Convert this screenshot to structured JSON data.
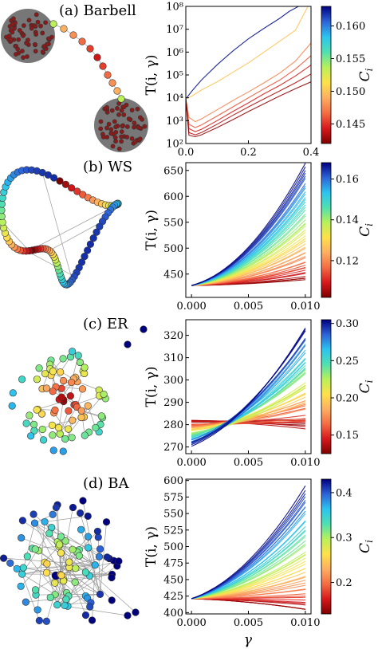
{
  "figure": {
    "colormap": [
      "#7f0000",
      "#d7191c",
      "#f46d43",
      "#fdae61",
      "#ffe14a",
      "#b8f15a",
      "#4fe0b0",
      "#2bc4f0",
      "#2e63d8",
      "#00007f"
    ],
    "y_axis_label": "T(i, γ)",
    "x_axis_label": "γ",
    "colorbar_label": "C_i"
  },
  "chart_data": [
    {
      "type": "line",
      "panel_label": "(a) Barbell",
      "network": "barbell",
      "xlabel": "",
      "ylabel": "T(i, γ)",
      "xlim": [
        0.0,
        0.4
      ],
      "ylim": [
        100,
        100000000
      ],
      "yscale": "log",
      "x_ticks": [
        "0.0",
        "0.2",
        "0.4"
      ],
      "y_ticks": [
        {
          "value": 100,
          "label": "10²"
        },
        {
          "value": 1000,
          "label": "10³"
        },
        {
          "value": 10000,
          "label": "10⁴"
        },
        {
          "value": 100000,
          "label": "10⁵"
        },
        {
          "value": 1000000,
          "label": "10⁶"
        },
        {
          "value": 10000000,
          "label": "10⁷"
        },
        {
          "value": 100000000,
          "label": "10⁸"
        }
      ],
      "colorbar": {
        "min": 0.142,
        "max": 0.163,
        "ticks": [
          "0.145",
          "0.150",
          "0.155",
          "0.160"
        ],
        "tick_values": [
          0.145,
          0.15,
          0.155,
          0.16
        ],
        "label": "C_i"
      },
      "grid": false,
      "series": [
        {
          "color_value": 0.1425,
          "values": [
            [
              0,
              9000
            ],
            [
              0.02,
              20000
            ],
            [
              0.05,
              60000
            ],
            [
              0.1,
              280000
            ],
            [
              0.15,
              1100000
            ],
            [
              0.2,
              3800000
            ],
            [
              0.25,
              11000000
            ],
            [
              0.3,
              30000000
            ],
            [
              0.33,
              60000000
            ],
            [
              0.36,
              100000000
            ]
          ]
        },
        {
          "color_value": 0.155,
          "values": [
            [
              0,
              9000
            ],
            [
              0.02,
              12000
            ],
            [
              0.05,
              22000
            ],
            [
              0.1,
              50000
            ],
            [
              0.15,
              130000
            ],
            [
              0.2,
              340000
            ],
            [
              0.25,
              1000000
            ],
            [
              0.3,
              3000000
            ],
            [
              0.35,
              9000000
            ],
            [
              0.39,
              100000000
            ]
          ]
        },
        {
          "color_value": 0.1575,
          "values": [
            [
              0,
              9000
            ],
            [
              0.01,
              1400
            ],
            [
              0.03,
              900
            ],
            [
              0.05,
              1200
            ],
            [
              0.1,
              3000
            ],
            [
              0.15,
              7500
            ],
            [
              0.2,
              18000
            ],
            [
              0.25,
              45000
            ],
            [
              0.3,
              120000
            ],
            [
              0.35,
              400000
            ],
            [
              0.4,
              2500000
            ]
          ]
        },
        {
          "color_value": 0.159,
          "values": [
            [
              0,
              9000
            ],
            [
              0.01,
              700
            ],
            [
              0.03,
              500
            ],
            [
              0.05,
              650
            ],
            [
              0.1,
              1600
            ],
            [
              0.15,
              4000
            ],
            [
              0.2,
              10000
            ],
            [
              0.25,
              25000
            ],
            [
              0.3,
              60000
            ],
            [
              0.35,
              180000
            ],
            [
              0.4,
              700000
            ]
          ]
        },
        {
          "color_value": 0.1605,
          "values": [
            [
              0,
              9000
            ],
            [
              0.01,
              450
            ],
            [
              0.03,
              330
            ],
            [
              0.05,
              420
            ],
            [
              0.1,
              1000
            ],
            [
              0.15,
              2500
            ],
            [
              0.2,
              6000
            ],
            [
              0.25,
              15000
            ],
            [
              0.3,
              35000
            ],
            [
              0.35,
              90000
            ],
            [
              0.4,
              270000
            ]
          ]
        },
        {
          "color_value": 0.1615,
          "values": [
            [
              0,
              9000
            ],
            [
              0.01,
              300
            ],
            [
              0.03,
              240
            ],
            [
              0.05,
              300
            ],
            [
              0.1,
              700
            ],
            [
              0.15,
              1700
            ],
            [
              0.2,
              4000
            ],
            [
              0.25,
              9000
            ],
            [
              0.3,
              20000
            ],
            [
              0.35,
              45000
            ],
            [
              0.4,
              110000
            ]
          ]
        },
        {
          "color_value": 0.1625,
          "values": [
            [
              0,
              9000
            ],
            [
              0.01,
              230
            ],
            [
              0.03,
              200
            ],
            [
              0.05,
              240
            ],
            [
              0.1,
              500
            ],
            [
              0.15,
              1100
            ],
            [
              0.2,
              2500
            ],
            [
              0.25,
              5500
            ],
            [
              0.3,
              12000
            ],
            [
              0.35,
              25000
            ],
            [
              0.4,
              50000
            ]
          ]
        }
      ]
    },
    {
      "type": "line",
      "panel_label": "(b) WS",
      "network": "watts-strogatz",
      "xlabel": "",
      "ylabel": "T(i, γ)",
      "xlim": [
        -0.0005,
        0.0105
      ],
      "ylim": [
        405,
        665
      ],
      "yscale": "linear",
      "x_ticks": [
        "0.000",
        "0.005",
        "0.010"
      ],
      "x_tick_values": [
        0,
        0.005,
        0.01
      ],
      "y_ticks": [
        450,
        500,
        550,
        600,
        650
      ],
      "colorbar": {
        "min": 0.102,
        "max": 0.168,
        "ticks": [
          "0.12",
          "0.14",
          "0.16"
        ],
        "tick_values": [
          0.12,
          0.14,
          0.16
        ],
        "label": "C_i"
      },
      "grid": false,
      "family": {
        "x0": 0,
        "x1": 0.01,
        "y0": 428,
        "cmin": 0.102,
        "cmax": 0.168,
        "n": 48,
        "end_min": 440,
        "end_max": 662,
        "curvature": 0.75
      }
    },
    {
      "type": "line",
      "panel_label": "(c) ER",
      "network": "erdos-renyi",
      "xlabel": "",
      "ylabel": "T(i, γ)",
      "xlim": [
        -0.0005,
        0.0105
      ],
      "ylim": [
        267,
        327
      ],
      "yscale": "linear",
      "x_ticks": [
        "0.000",
        "0.005",
        "0.010"
      ],
      "x_tick_values": [
        0,
        0.005,
        0.01
      ],
      "y_ticks": [
        270,
        280,
        290,
        300,
        310,
        320
      ],
      "colorbar": {
        "min": 0.125,
        "max": 0.305,
        "ticks": [
          "0.15",
          "0.20",
          "0.25",
          "0.30"
        ],
        "tick_values": [
          0.15,
          0.2,
          0.25,
          0.3
        ],
        "label": "C_i"
      },
      "grid": false,
      "family": {
        "x0": 0,
        "x1": 0.01,
        "y0_min": 271,
        "y0_max": 282,
        "cmin": 0.125,
        "cmax": 0.305,
        "n": 52,
        "end_min": 279,
        "end_max": 324,
        "curvature": 0.6
      }
    },
    {
      "type": "line",
      "panel_label": "(d) BA",
      "network": "barabasi-albert",
      "xlabel": "γ",
      "ylabel": "T(i, γ)",
      "xlim": [
        -0.0005,
        0.0105
      ],
      "ylim": [
        398,
        602
      ],
      "yscale": "linear",
      "x_ticks": [
        "0.000",
        "0.005",
        "0.010"
      ],
      "x_tick_values": [
        0,
        0.005,
        0.01
      ],
      "y_ticks": [
        400,
        425,
        450,
        475,
        500,
        525,
        550,
        575,
        600
      ],
      "colorbar": {
        "min": 0.13,
        "max": 0.43,
        "ticks": [
          "0.2",
          "0.3",
          "0.4"
        ],
        "tick_values": [
          0.2,
          0.3,
          0.4
        ],
        "label": "C_i"
      },
      "grid": false,
      "family": {
        "x0": 0,
        "x1": 0.01,
        "y0": 421,
        "cmin": 0.13,
        "cmax": 0.43,
        "n": 46,
        "end_min": 404,
        "end_max": 593,
        "curvature": 0.65
      }
    }
  ]
}
